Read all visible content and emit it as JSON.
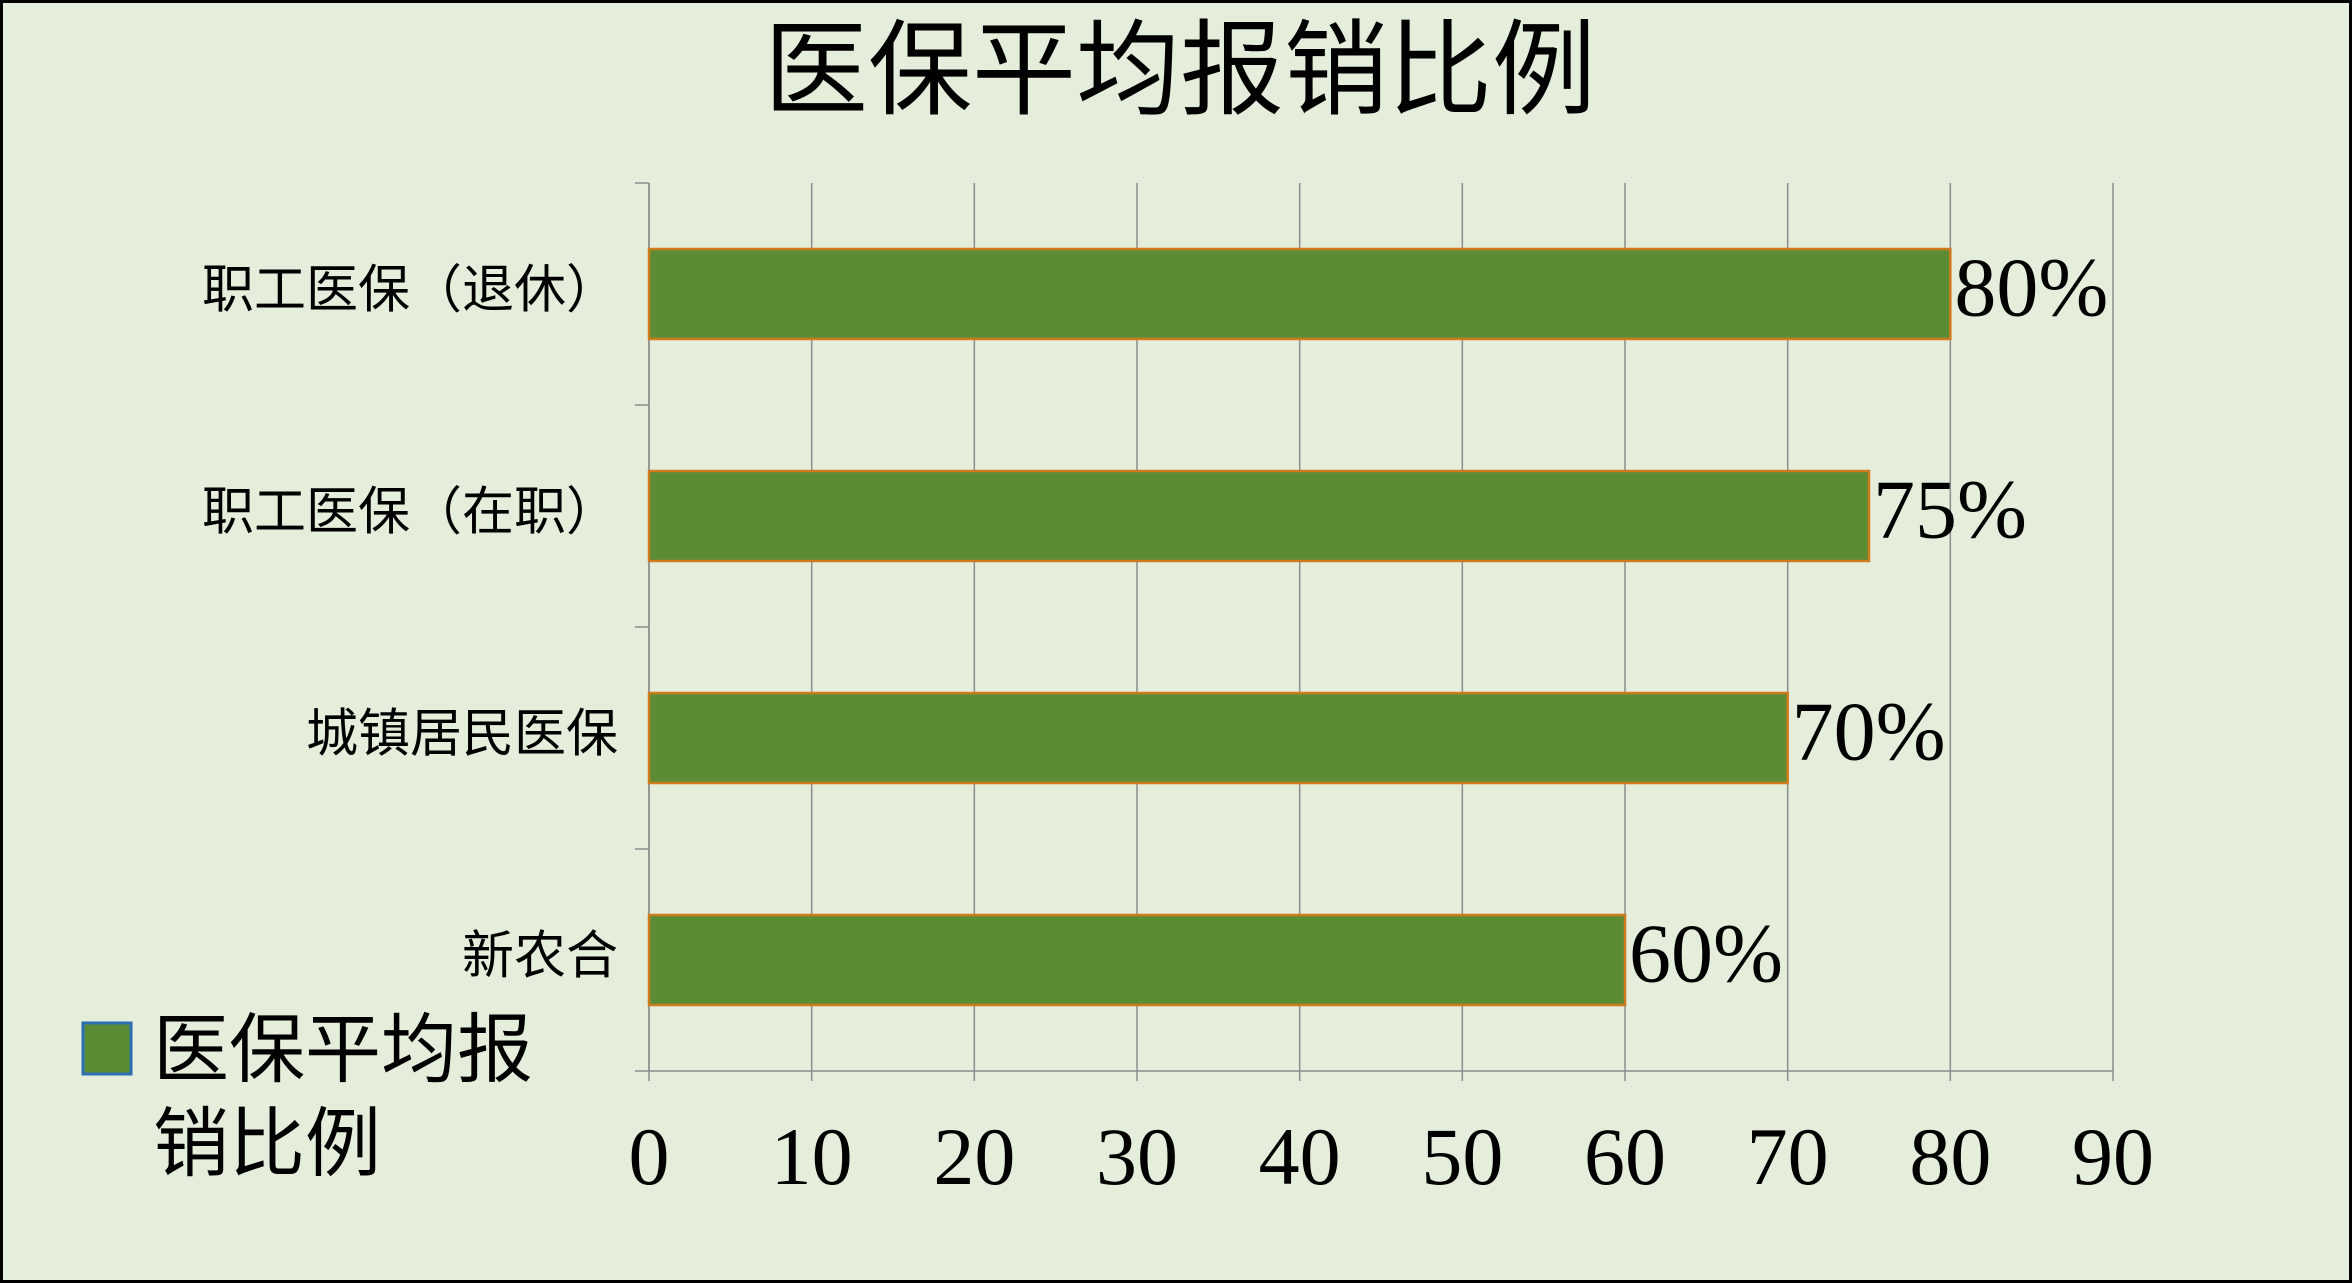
{
  "chart_data": {
    "type": "bar",
    "orientation": "horizontal",
    "title": "医保平均报销比例",
    "categories": [
      "职工医保（退休）",
      "职工医保（在职）",
      "城镇居民医保",
      "新农合"
    ],
    "series": [
      {
        "name": "医保平均报销比例",
        "color": "#5b8c33",
        "values": [
          80,
          75,
          70,
          60
        ],
        "value_labels": [
          "80%",
          "75%",
          "70%",
          "60%"
        ]
      }
    ],
    "xlim": [
      0,
      90
    ],
    "xticks": [
      0,
      10,
      20,
      30,
      40,
      50,
      60,
      70,
      80,
      90
    ],
    "grid": true,
    "legend": "bottom-left"
  }
}
